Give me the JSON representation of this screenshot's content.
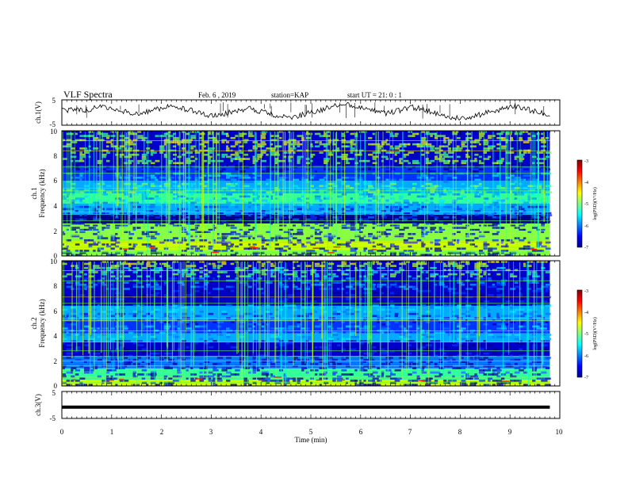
{
  "header": {
    "title": "VLF Spectra",
    "date": "Feb. 6 , 2019",
    "station": "station=KAP",
    "start": "start UT = 21: 0 : 1"
  },
  "chart_data": [
    {
      "id": "ch1-waveform",
      "type": "line",
      "ylabel": "ch.1(V)",
      "ylim": [
        -5,
        5
      ],
      "yticks": [
        "5",
        "-5"
      ],
      "xlim": [
        0,
        10
      ],
      "x_extent": 9.8,
      "series": [
        {
          "values": [
            0.5,
            1.5,
            0.8,
            2.2,
            1.1,
            0.3,
            -0.8,
            0.6,
            1.8,
            2.5,
            1.2,
            -0.2,
            -1.5,
            -0.5,
            0.9,
            1.6,
            0.4,
            -0.9,
            -2.0,
            -1.2,
            0.2,
            1.4,
            2.8,
            3.1,
            1.9,
            0.6,
            -0.4,
            0.8,
            2.0,
            1.2,
            -0.6,
            -1.8,
            -2.5,
            -1.4,
            0.0,
            1.1,
            2.4,
            1.5,
            0.3,
            -0.7
          ]
        }
      ]
    },
    {
      "id": "ch1-spectrogram",
      "type": "heatmap",
      "ylabel_1": "ch.1",
      "ylabel_2": "Frequency (kHz)",
      "ylim": [
        0,
        10
      ],
      "yticks": [
        "0",
        "2",
        "4",
        "6",
        "8",
        "10"
      ],
      "xlim": [
        0,
        10
      ],
      "x_extent": 9.8,
      "colorbar": {
        "label": "log(PSD)(V²/Hz)",
        "range": [
          -7,
          -3
        ],
        "ticks": [
          "-3",
          "-4",
          "-5",
          "-6",
          "-7"
        ]
      }
    },
    {
      "id": "ch2-spectrogram",
      "type": "heatmap",
      "ylabel_1": "ch.2",
      "ylabel_2": "Frequency (kHz)",
      "ylim": [
        0,
        10
      ],
      "yticks": [
        "0",
        "2",
        "4",
        "6",
        "8",
        "10"
      ],
      "xlim": [
        0,
        10
      ],
      "x_extent": 9.8,
      "colorbar": {
        "label": "log(PSD)(V²/Hz)",
        "range": [
          -7,
          -3
        ],
        "ticks": [
          "-3",
          "-4",
          "-5",
          "-6",
          "-7"
        ]
      }
    },
    {
      "id": "ch3-waveform",
      "type": "line",
      "ylabel": "ch.3(V)",
      "ylim": [
        -5,
        5
      ],
      "yticks": [
        "5",
        "-5"
      ],
      "xlim": [
        0,
        10
      ],
      "x_extent": 9.8,
      "series": [
        {
          "values": [
            -0.8,
            -0.8
          ]
        }
      ]
    }
  ],
  "xaxis": {
    "label": "Time (min)",
    "ticks": [
      "0",
      "1",
      "2",
      "3",
      "4",
      "5",
      "6",
      "7",
      "8",
      "9",
      "10"
    ]
  }
}
